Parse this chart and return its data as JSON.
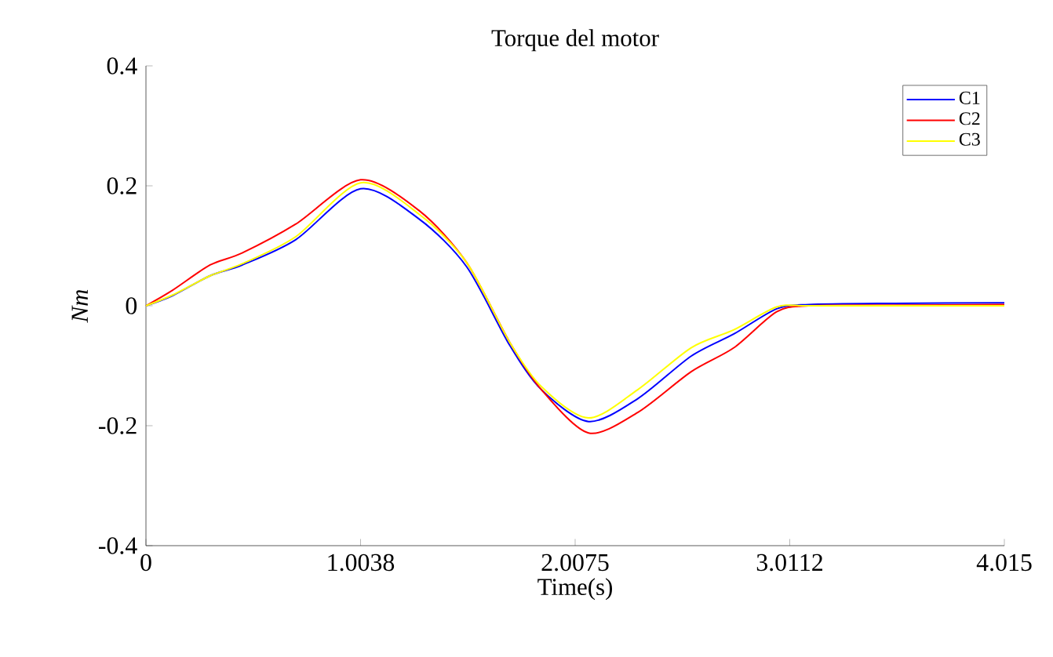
{
  "chart_data": {
    "type": "line",
    "title": "Torque del motor",
    "xlabel": "Time(s)",
    "ylabel": "*Nm*",
    "x": [
      0,
      0.125,
      0.3,
      0.45,
      0.7,
      1.0038,
      1.28,
      1.5,
      1.7,
      1.85,
      2.07,
      2.3,
      2.55,
      2.75,
      2.95,
      3.1,
      3.5,
      4.015
    ],
    "series": [
      {
        "name": "C1",
        "color": "#0000ff",
        "values": [
          0,
          0.017,
          0.05,
          0.068,
          0.11,
          0.195,
          0.144,
          0.065,
          -0.065,
          -0.14,
          -0.193,
          -0.155,
          -0.084,
          -0.047,
          -0.005,
          0.002,
          0.004,
          0.005
        ]
      },
      {
        "name": "C2",
        "color": "#ff0000",
        "values": [
          0,
          0.026,
          0.068,
          0.088,
          0.136,
          0.21,
          0.158,
          0.072,
          -0.06,
          -0.14,
          -0.212,
          -0.178,
          -0.11,
          -0.07,
          -0.01,
          0,
          0.001,
          0.002
        ]
      },
      {
        "name": "C3",
        "color": "#ffff00",
        "values": [
          0,
          0.018,
          0.05,
          0.07,
          0.115,
          0.205,
          0.152,
          0.072,
          -0.06,
          -0.135,
          -0.187,
          -0.14,
          -0.07,
          -0.04,
          -0.002,
          0,
          0,
          0
        ]
      }
    ],
    "xlim": [
      0,
      4.015
    ],
    "ylim": [
      -0.4,
      0.4
    ],
    "xticks": [
      0,
      1.0038,
      2.0075,
      3.0112,
      4.015
    ],
    "yticks": [
      -0.4,
      -0.2,
      0,
      0.2,
      0.4
    ],
    "grid": false,
    "legend": "top right",
    "marker": "none",
    "line_style": "solid"
  }
}
